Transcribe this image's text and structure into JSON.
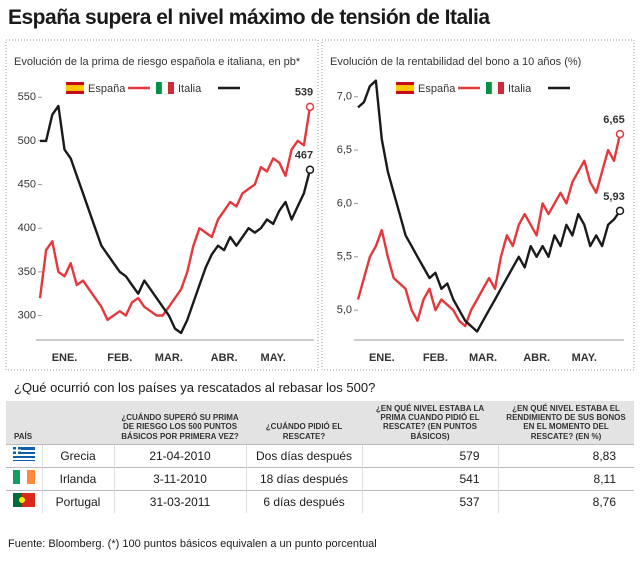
{
  "header": {
    "title": "España supera el nivel máximo de tensión de Italia"
  },
  "chart_data": [
    {
      "type": "line",
      "title": "Evolución de la prima de riesgo española e italiana, en pb*",
      "categories": [
        null,
        null,
        null,
        null,
        "ENE.",
        null,
        null,
        null,
        null,
        null,
        null,
        null,
        null,
        "FEB.",
        null,
        null,
        null,
        null,
        null,
        null,
        null,
        "MAR.",
        null,
        null,
        null,
        null,
        null,
        null,
        null,
        null,
        "ABR.",
        null,
        null,
        null,
        null,
        null,
        null,
        null,
        "MAY.",
        null,
        null,
        null,
        null,
        null,
        null
      ],
      "series": [
        {
          "name": "España",
          "color": "#e5383d",
          "values": [
            320,
            375,
            385,
            350,
            345,
            360,
            335,
            340,
            330,
            320,
            310,
            295,
            300,
            305,
            300,
            315,
            320,
            310,
            305,
            300,
            300,
            310,
            320,
            330,
            350,
            380,
            400,
            395,
            390,
            410,
            420,
            430,
            425,
            440,
            445,
            450,
            470,
            465,
            480,
            475,
            460,
            490,
            500,
            495,
            539
          ]
        },
        {
          "name": "Italia",
          "color": "#1a1a1a",
          "values": [
            500,
            500,
            530,
            540,
            490,
            480,
            460,
            440,
            420,
            400,
            380,
            370,
            360,
            350,
            345,
            335,
            325,
            340,
            330,
            320,
            310,
            300,
            285,
            280,
            295,
            315,
            335,
            355,
            370,
            380,
            375,
            390,
            380,
            390,
            400,
            395,
            400,
            410,
            405,
            420,
            430,
            410,
            425,
            440,
            467
          ]
        }
      ],
      "ylim": [
        272,
        564
      ],
      "yticks": [
        300,
        350,
        400,
        450,
        500,
        550
      ]
    },
    {
      "type": "line",
      "title": "Evolución de la rentabilidad del bono a 10 años (%)",
      "categories": [
        null,
        null,
        null,
        null,
        "ENE.",
        null,
        null,
        null,
        null,
        null,
        null,
        null,
        null,
        "FEB.",
        null,
        null,
        null,
        null,
        null,
        null,
        null,
        "MAR.",
        null,
        null,
        null,
        null,
        null,
        null,
        null,
        null,
        "ABR.",
        null,
        null,
        null,
        null,
        null,
        null,
        null,
        "MAY.",
        null,
        null,
        null,
        null,
        null,
        null
      ],
      "series": [
        {
          "name": "España",
          "color": "#e5383d",
          "values": [
            5.1,
            5.3,
            5.5,
            5.6,
            5.75,
            5.5,
            5.3,
            5.25,
            5.2,
            5.0,
            4.9,
            5.1,
            5.2,
            5.0,
            5.1,
            5.05,
            5.0,
            4.9,
            4.85,
            5.0,
            5.1,
            5.2,
            5.3,
            5.2,
            5.5,
            5.7,
            5.6,
            5.8,
            5.9,
            5.8,
            5.7,
            6.0,
            5.9,
            6.0,
            6.1,
            6.0,
            6.2,
            6.3,
            6.4,
            6.2,
            6.1,
            6.3,
            6.5,
            6.4,
            6.65
          ],
          "value_labels": [
            null,
            null,
            null,
            null,
            null,
            null,
            null,
            null,
            null,
            null,
            null,
            null,
            null,
            null,
            null,
            null,
            null,
            null,
            null,
            null,
            null,
            null,
            null,
            null,
            null,
            null,
            null,
            null,
            null,
            null,
            null,
            null,
            null,
            null,
            null,
            null,
            null,
            null,
            null,
            null,
            null,
            null,
            null,
            null,
            "6,65"
          ]
        },
        {
          "name": "Italia",
          "color": "#1a1a1a",
          "values": [
            6.9,
            6.95,
            7.1,
            7.15,
            6.6,
            6.3,
            6.1,
            5.9,
            5.7,
            5.6,
            5.5,
            5.4,
            5.3,
            5.35,
            5.2,
            5.25,
            5.1,
            5.0,
            4.9,
            4.85,
            4.8,
            4.9,
            5.0,
            5.1,
            5.2,
            5.3,
            5.4,
            5.5,
            5.4,
            5.6,
            5.5,
            5.6,
            5.5,
            5.7,
            5.6,
            5.8,
            5.7,
            5.9,
            5.8,
            5.6,
            5.7,
            5.6,
            5.8,
            5.85,
            5.93
          ],
          "value_labels": [
            null,
            null,
            null,
            null,
            null,
            null,
            null,
            null,
            null,
            null,
            null,
            null,
            null,
            null,
            null,
            null,
            null,
            null,
            null,
            null,
            null,
            null,
            null,
            null,
            null,
            null,
            null,
            null,
            null,
            null,
            null,
            null,
            null,
            null,
            null,
            null,
            null,
            null,
            null,
            null,
            null,
            null,
            null,
            null,
            "5,93"
          ]
        }
      ],
      "ylim": [
        4.72,
        7.11
      ],
      "yticks": [
        {
          "value": 5,
          "label": "5,0"
        },
        {
          "value": 5.5,
          "label": "5,5"
        },
        {
          "value": 6,
          "label": "6,0"
        },
        {
          "value": 6.5,
          "label": "6,5"
        },
        {
          "value": 7,
          "label": "7,0"
        }
      ]
    }
  ],
  "table": {
    "title": "¿Qué ocurrió con los países ya rescatados al rebasar los 500?",
    "columns": [
      "PAÍS",
      "¿CUÁNDO SUPERÓ SU PRIMA DE RIESGO LOS 500 PUNTOS BÁSICOS POR PRIMERA VEZ?",
      "¿CUÁNDO PIDIÓ EL RESCATE?",
      "¿EN QUÉ NIVEL ESTABA LA PRIMA CUANDO PIDIÓ EL RESCATE? (EN PUNTOS BÁSICOS)",
      "¿EN QUÉ NIVEL ESTABA EL RENDIMIENTO DE SUS BONOS EN EL MOMENTO DEL RESCATE? (EN %)"
    ],
    "rows": [
      [
        "Grecia",
        "21-04-2010",
        "Dos días después",
        "579",
        "8,83"
      ],
      [
        "Irlanda",
        "3-11-2010",
        "18 días después",
        "541",
        "8,11"
      ],
      [
        "Portugal",
        "31-03-2011",
        "6 días después",
        "537",
        "8,76"
      ]
    ]
  },
  "footer": {
    "source": "Fuente: Bloomberg. (*) 100 puntos básicos equivalen a un punto porcentual"
  }
}
